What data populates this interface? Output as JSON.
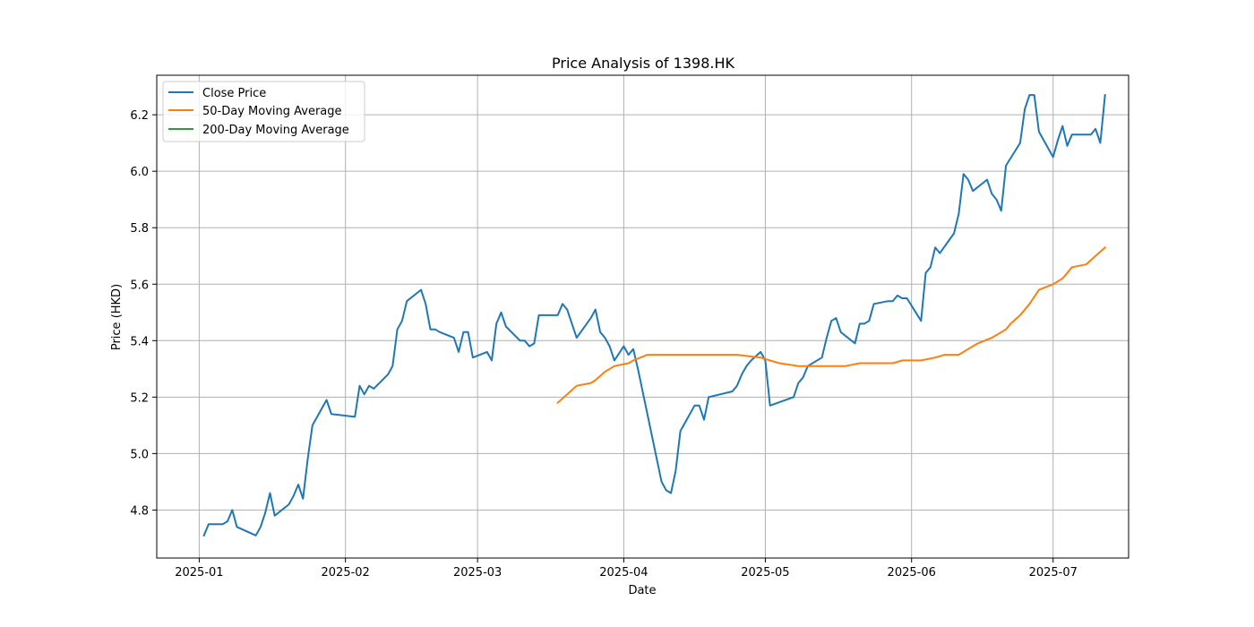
{
  "chart_data": {
    "type": "line",
    "title": "Price Analysis of 1398.HK",
    "xlabel": "Date",
    "ylabel": "Price (HKD)",
    "x_range": [
      "2024-12-23",
      "2025-07-17"
    ],
    "ylim": [
      4.63,
      6.34
    ],
    "grid": true,
    "legend_position": "top-left",
    "x_ticks": [
      "2025-01",
      "2025-02",
      "2025-03",
      "2025-04",
      "2025-05",
      "2025-06",
      "2025-07"
    ],
    "x_tick_dates": [
      "2025-01-01",
      "2025-02-01",
      "2025-03-01",
      "2025-04-01",
      "2025-05-01",
      "2025-06-01",
      "2025-07-01"
    ],
    "y_ticks": [
      "4.8",
      "5.0",
      "5.2",
      "5.4",
      "5.6",
      "5.8",
      "6.0",
      "6.2"
    ],
    "y_tick_values": [
      4.8,
      5.0,
      5.2,
      5.4,
      5.6,
      5.8,
      6.0,
      6.2
    ],
    "series": [
      {
        "name": "Close Price",
        "color": "#1f77b4",
        "points": [
          [
            "2025-01-02",
            4.71
          ],
          [
            "2025-01-03",
            4.75
          ],
          [
            "2025-01-06",
            4.75
          ],
          [
            "2025-01-07",
            4.76
          ],
          [
            "2025-01-08",
            4.8
          ],
          [
            "2025-01-09",
            4.74
          ],
          [
            "2025-01-13",
            4.71
          ],
          [
            "2025-01-14",
            4.74
          ],
          [
            "2025-01-15",
            4.79
          ],
          [
            "2025-01-16",
            4.86
          ],
          [
            "2025-01-17",
            4.78
          ],
          [
            "2025-01-20",
            4.82
          ],
          [
            "2025-01-21",
            4.85
          ],
          [
            "2025-01-22",
            4.89
          ],
          [
            "2025-01-23",
            4.84
          ],
          [
            "2025-01-24",
            4.98
          ],
          [
            "2025-01-25",
            5.1
          ],
          [
            "2025-01-28",
            5.19
          ],
          [
            "2025-01-29",
            5.14
          ],
          [
            "2025-02-03",
            5.13
          ],
          [
            "2025-02-04",
            5.24
          ],
          [
            "2025-02-05",
            5.21
          ],
          [
            "2025-02-06",
            5.24
          ],
          [
            "2025-02-07",
            5.23
          ],
          [
            "2025-02-10",
            5.28
          ],
          [
            "2025-02-11",
            5.31
          ],
          [
            "2025-02-12",
            5.44
          ],
          [
            "2025-02-13",
            5.47
          ],
          [
            "2025-02-14",
            5.54
          ],
          [
            "2025-02-17",
            5.58
          ],
          [
            "2025-02-18",
            5.53
          ],
          [
            "2025-02-19",
            5.44
          ],
          [
            "2025-02-20",
            5.44
          ],
          [
            "2025-02-21",
            5.43
          ],
          [
            "2025-02-24",
            5.41
          ],
          [
            "2025-02-25",
            5.36
          ],
          [
            "2025-02-26",
            5.43
          ],
          [
            "2025-02-27",
            5.43
          ],
          [
            "2025-02-28",
            5.34
          ],
          [
            "2025-03-03",
            5.36
          ],
          [
            "2025-03-04",
            5.33
          ],
          [
            "2025-03-05",
            5.46
          ],
          [
            "2025-03-06",
            5.5
          ],
          [
            "2025-03-07",
            5.45
          ],
          [
            "2025-03-10",
            5.4
          ],
          [
            "2025-03-11",
            5.4
          ],
          [
            "2025-03-12",
            5.38
          ],
          [
            "2025-03-13",
            5.39
          ],
          [
            "2025-03-14",
            5.49
          ],
          [
            "2025-03-17",
            5.49
          ],
          [
            "2025-03-18",
            5.49
          ],
          [
            "2025-03-19",
            5.53
          ],
          [
            "2025-03-20",
            5.51
          ],
          [
            "2025-03-21",
            5.46
          ],
          [
            "2025-03-22",
            5.41
          ],
          [
            "2025-03-25",
            5.48
          ],
          [
            "2025-03-26",
            5.51
          ],
          [
            "2025-03-27",
            5.43
          ],
          [
            "2025-03-28",
            5.41
          ],
          [
            "2025-03-29",
            5.38
          ],
          [
            "2025-03-30",
            5.33
          ],
          [
            "2025-04-01",
            5.38
          ],
          [
            "2025-04-02",
            5.35
          ],
          [
            "2025-04-03",
            5.37
          ],
          [
            "2025-04-04",
            5.3
          ],
          [
            "2025-04-08",
            4.98
          ],
          [
            "2025-04-09",
            4.9
          ],
          [
            "2025-04-10",
            4.87
          ],
          [
            "2025-04-11",
            4.86
          ],
          [
            "2025-04-12",
            4.94
          ],
          [
            "2025-04-13",
            5.08
          ],
          [
            "2025-04-16",
            5.17
          ],
          [
            "2025-04-17",
            5.17
          ],
          [
            "2025-04-18",
            5.12
          ],
          [
            "2025-04-19",
            5.2
          ],
          [
            "2025-04-24",
            5.22
          ],
          [
            "2025-04-25",
            5.24
          ],
          [
            "2025-04-26",
            5.28
          ],
          [
            "2025-04-27",
            5.31
          ],
          [
            "2025-04-28",
            5.33
          ],
          [
            "2025-04-30",
            5.36
          ],
          [
            "2025-05-01",
            5.33
          ],
          [
            "2025-05-02",
            5.17
          ],
          [
            "2025-05-07",
            5.2
          ],
          [
            "2025-05-08",
            5.25
          ],
          [
            "2025-05-09",
            5.27
          ],
          [
            "2025-05-10",
            5.31
          ],
          [
            "2025-05-13",
            5.34
          ],
          [
            "2025-05-14",
            5.41
          ],
          [
            "2025-05-15",
            5.47
          ],
          [
            "2025-05-16",
            5.48
          ],
          [
            "2025-05-17",
            5.43
          ],
          [
            "2025-05-20",
            5.39
          ],
          [
            "2025-05-21",
            5.46
          ],
          [
            "2025-05-22",
            5.46
          ],
          [
            "2025-05-23",
            5.47
          ],
          [
            "2025-05-24",
            5.53
          ],
          [
            "2025-05-27",
            5.54
          ],
          [
            "2025-05-28",
            5.54
          ],
          [
            "2025-05-29",
            5.56
          ],
          [
            "2025-05-30",
            5.55
          ],
          [
            "2025-05-31",
            5.55
          ],
          [
            "2025-06-03",
            5.47
          ],
          [
            "2025-06-04",
            5.64
          ],
          [
            "2025-06-05",
            5.66
          ],
          [
            "2025-06-06",
            5.73
          ],
          [
            "2025-06-07",
            5.71
          ],
          [
            "2025-06-10",
            5.78
          ],
          [
            "2025-06-11",
            5.85
          ],
          [
            "2025-06-12",
            5.99
          ],
          [
            "2025-06-13",
            5.97
          ],
          [
            "2025-06-14",
            5.93
          ],
          [
            "2025-06-17",
            5.97
          ],
          [
            "2025-06-18",
            5.92
          ],
          [
            "2025-06-19",
            5.9
          ],
          [
            "2025-06-20",
            5.86
          ],
          [
            "2025-06-21",
            6.02
          ],
          [
            "2025-06-24",
            6.1
          ],
          [
            "2025-06-25",
            6.22
          ],
          [
            "2025-06-26",
            6.27
          ],
          [
            "2025-06-27",
            6.27
          ],
          [
            "2025-06-28",
            6.14
          ],
          [
            "2025-07-01",
            6.05
          ],
          [
            "2025-07-02",
            6.11
          ],
          [
            "2025-07-03",
            6.16
          ],
          [
            "2025-07-04",
            6.09
          ],
          [
            "2025-07-05",
            6.13
          ],
          [
            "2025-07-08",
            6.13
          ],
          [
            "2025-07-09",
            6.13
          ],
          [
            "2025-07-10",
            6.15
          ],
          [
            "2025-07-11",
            6.1
          ],
          [
            "2025-07-12",
            6.27
          ]
        ]
      },
      {
        "name": "50-Day Moving Average",
        "color": "#ff7f0e",
        "points": [
          [
            "2025-03-18",
            5.18
          ],
          [
            "2025-03-20",
            5.21
          ],
          [
            "2025-03-22",
            5.24
          ],
          [
            "2025-03-25",
            5.25
          ],
          [
            "2025-03-26",
            5.26
          ],
          [
            "2025-03-28",
            5.29
          ],
          [
            "2025-03-30",
            5.31
          ],
          [
            "2025-04-02",
            5.32
          ],
          [
            "2025-04-03",
            5.33
          ],
          [
            "2025-04-06",
            5.35
          ],
          [
            "2025-04-08",
            5.35
          ],
          [
            "2025-04-13",
            5.35
          ],
          [
            "2025-04-16",
            5.35
          ],
          [
            "2025-04-19",
            5.35
          ],
          [
            "2025-04-25",
            5.35
          ],
          [
            "2025-04-30",
            5.34
          ],
          [
            "2025-05-02",
            5.33
          ],
          [
            "2025-05-04",
            5.32
          ],
          [
            "2025-05-08",
            5.31
          ],
          [
            "2025-05-11",
            5.31
          ],
          [
            "2025-05-15",
            5.31
          ],
          [
            "2025-05-18",
            5.31
          ],
          [
            "2025-05-21",
            5.32
          ],
          [
            "2025-05-24",
            5.32
          ],
          [
            "2025-05-28",
            5.32
          ],
          [
            "2025-05-30",
            5.33
          ],
          [
            "2025-06-03",
            5.33
          ],
          [
            "2025-06-06",
            5.34
          ],
          [
            "2025-06-08",
            5.35
          ],
          [
            "2025-06-11",
            5.35
          ],
          [
            "2025-06-13",
            5.37
          ],
          [
            "2025-06-15",
            5.39
          ],
          [
            "2025-06-18",
            5.41
          ],
          [
            "2025-06-21",
            5.44
          ],
          [
            "2025-06-22",
            5.46
          ],
          [
            "2025-06-24",
            5.49
          ],
          [
            "2025-06-26",
            5.53
          ],
          [
            "2025-06-28",
            5.58
          ],
          [
            "2025-07-01",
            5.6
          ],
          [
            "2025-07-03",
            5.62
          ],
          [
            "2025-07-05",
            5.66
          ],
          [
            "2025-07-08",
            5.67
          ],
          [
            "2025-07-10",
            5.7
          ],
          [
            "2025-07-12",
            5.73
          ]
        ]
      },
      {
        "name": "200-Day Moving Average",
        "color": "#2ca02c",
        "points": []
      }
    ]
  }
}
